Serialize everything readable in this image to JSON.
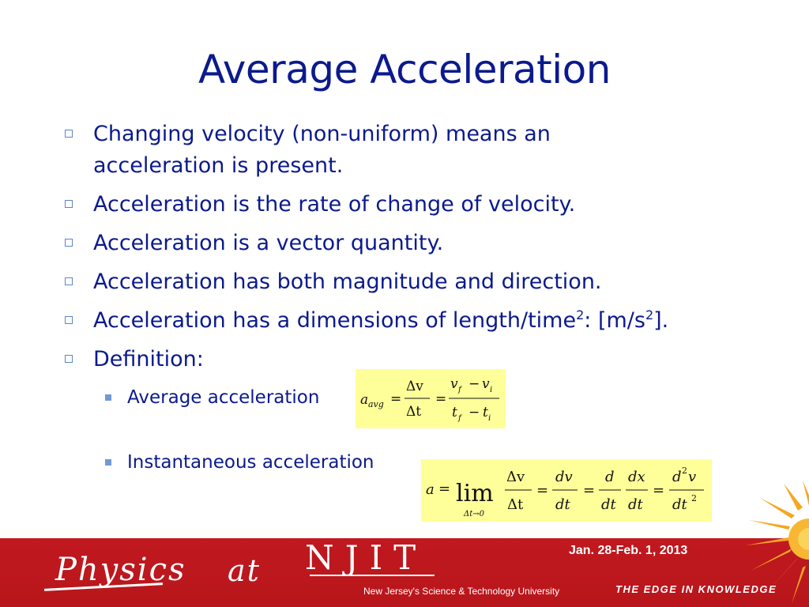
{
  "slide": {
    "title": "Average Acceleration",
    "bullets": [
      {
        "lines": [
          "Changing velocity (non-uniform) means an",
          "acceleration is present."
        ]
      },
      {
        "text": "Acceleration is the rate of change of velocity."
      },
      {
        "text": "Acceleration is a vector quantity."
      },
      {
        "text": "Acceleration has both magnitude and direction."
      },
      {
        "parts": [
          "Acceleration has a dimensions of length/time",
          "2",
          ": [m/s",
          "2",
          "]."
        ]
      },
      {
        "text": "Definition:"
      }
    ],
    "sub_bullets": [
      {
        "text": "Average acceleration"
      },
      {
        "text": "Instantaneous acceleration"
      }
    ],
    "formula_average": {
      "lhs": "a",
      "lhs_sub": "avg",
      "eq": "=",
      "num1": "Δv",
      "den1": "Δt",
      "num2_a": "v",
      "num2_a_sub": "f",
      "num2_op": "−",
      "num2_b": "v",
      "num2_b_sub": "i",
      "den2_a": "t",
      "den2_a_sub": "f",
      "den2_op": "−",
      "den2_b": "t",
      "den2_b_sub": "i"
    },
    "formula_instantaneous": {
      "lhs": "a",
      "eq": "=",
      "lim": "lim",
      "lim_sub": "Δt→0",
      "f1_num": "Δv",
      "f1_den": "Δt",
      "f2_num": "dv",
      "f2_den": "dt",
      "f3_num": "d",
      "f3_den": "dt",
      "f4_num": "dx",
      "f4_den": "dt",
      "f5_num": "d",
      "f5_num_sup": "2",
      "f5_num_b": "v",
      "f5_den": "dt",
      "f5_den_sup": "2"
    },
    "formula_bg": "#ffff99"
  },
  "footer": {
    "physics": "Physics",
    "at": "at",
    "njit": "NJIT",
    "njit_sub": "New Jersey's Science & Technology University",
    "date": "Jan. 28-Feb. 1, 2013",
    "tagline": "THE EDGE IN KNOWLEDGE",
    "bg_color": "#c0191f",
    "sun_color": "#f5a623"
  },
  "colors": {
    "title": "#0b1a8c",
    "bullet_box": "#5b86c8",
    "sub_bullet": "#6f9ad8"
  }
}
